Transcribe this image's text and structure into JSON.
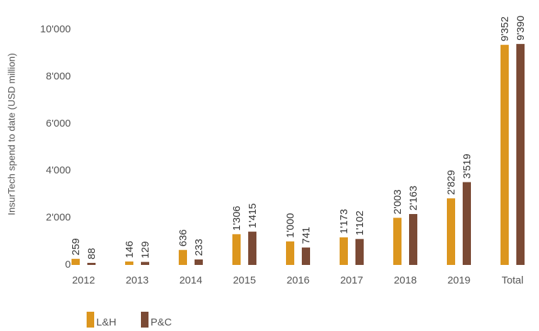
{
  "chart_data": {
    "type": "bar",
    "y_label": "InsurTech spend to date (USD million)",
    "categories": [
      "2012",
      "2013",
      "2014",
      "2015",
      "2016",
      "2017",
      "2018",
      "2019",
      "Total"
    ],
    "series": [
      {
        "name": "L&H",
        "color": "#dc961e",
        "values": [
          259,
          146,
          636,
          1306,
          1000,
          1173,
          2003,
          2829,
          9352
        ],
        "value_labels": [
          "259",
          "146",
          "636",
          "1'306",
          "1'000",
          "1'173",
          "2'003",
          "2'829",
          "9'352"
        ]
      },
      {
        "name": "P&C",
        "color": "#7b4a35",
        "values": [
          88,
          129,
          233,
          1415,
          741,
          1102,
          2163,
          3519,
          9390
        ],
        "value_labels": [
          "88",
          "129",
          "233",
          "1'415",
          "741",
          "1'102",
          "2'163",
          "3'519",
          "9'390"
        ]
      }
    ],
    "ylim": [
      0,
      10000
    ],
    "yticks": [
      0,
      {
        "value": 2000,
        "label": "2'000"
      },
      {
        "value": 4000,
        "label": "4'000"
      },
      {
        "value": 6000,
        "label": "6'000"
      },
      {
        "value": 8000,
        "label": "8'000"
      },
      {
        "value": 10000,
        "label": "10'000"
      }
    ],
    "grid": false,
    "legend": "bottom-left"
  }
}
